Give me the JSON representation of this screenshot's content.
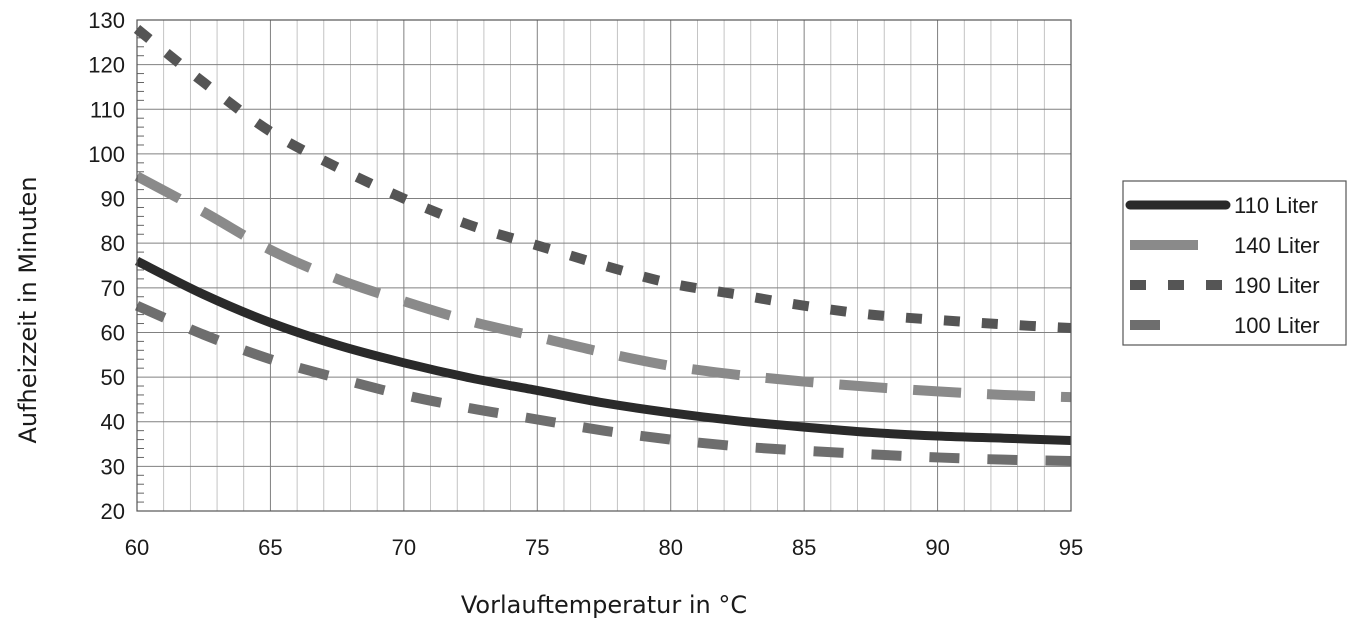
{
  "chart_data": {
    "type": "line",
    "title": "",
    "xlabel": "Vorlauftemperatur in °C",
    "ylabel": "Aufheizzeit in Minuten",
    "xlim": [
      60,
      95
    ],
    "ylim": [
      20,
      130
    ],
    "x_ticks": [
      60,
      65,
      70,
      75,
      80,
      85,
      90,
      95
    ],
    "y_ticks": [
      20,
      30,
      40,
      50,
      60,
      70,
      80,
      90,
      100,
      110,
      120,
      130
    ],
    "grid": true,
    "legend_position": "right",
    "x": [
      60,
      62.5,
      65,
      67.5,
      70,
      72.5,
      75,
      77.5,
      80,
      82.5,
      85,
      87.5,
      90,
      92.5,
      95
    ],
    "series": [
      {
        "name": "110 Liter",
        "style": "solid",
        "color": "#2a2a2a",
        "values": [
          76,
          68.5,
          62.2,
          57.2,
          53.2,
          49.8,
          47,
          44.2,
          42,
          40.2,
          38.8,
          37.6,
          36.8,
          36.3,
          35.8
        ]
      },
      {
        "name": "140 Liter",
        "style": "long-dash",
        "color": "#8a8a8a",
        "values": [
          95,
          87,
          78.5,
          72,
          67,
          62.5,
          59,
          55.5,
          52.5,
          50.5,
          49,
          47.8,
          46.8,
          46,
          45.5
        ]
      },
      {
        "name": "190 Liter",
        "style": "short-dash",
        "color": "#555555",
        "values": [
          128,
          116,
          105,
          97,
          90,
          84,
          79.5,
          75,
          71,
          68.5,
          66,
          64,
          62.8,
          61.8,
          61
        ]
      },
      {
        "name": "100 Liter",
        "style": "medium-dash",
        "color": "#6e6e6e",
        "values": [
          66,
          59.5,
          54,
          49.8,
          46,
          43,
          40.5,
          38,
          36,
          34.5,
          33.5,
          32.7,
          32,
          31.5,
          31.2
        ]
      }
    ]
  }
}
